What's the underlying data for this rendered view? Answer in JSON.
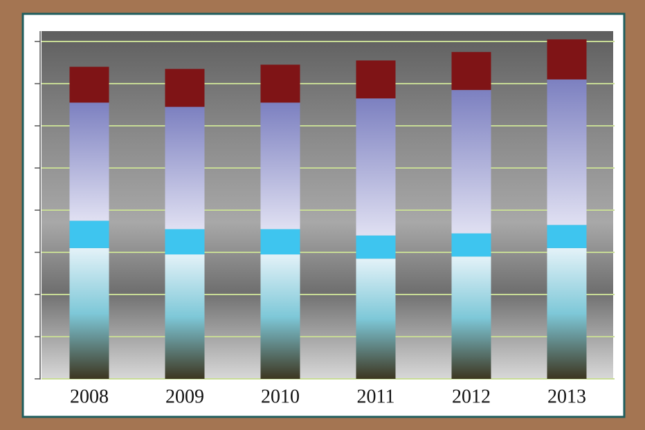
{
  "chart_data": {
    "type": "stacked-bar",
    "categories": [
      "2008",
      "2009",
      "2010",
      "2011",
      "2012",
      "2013"
    ],
    "series": [
      {
        "color": "#7ec8d8",
        "gradient": [
          "#e4f2f8",
          "#7ec8d8",
          "#3d3620"
        ],
        "values": [
          3.1,
          2.95,
          2.95,
          2.85,
          2.9,
          3.1
        ]
      },
      {
        "color": "#3ec5ef",
        "values": [
          0.65,
          0.6,
          0.6,
          0.55,
          0.55,
          0.55
        ]
      },
      {
        "color": "#7c80c0",
        "gradient": [
          "#7c80c0",
          "#e0e0f2"
        ],
        "values": [
          2.8,
          2.9,
          3.0,
          3.25,
          3.4,
          3.45
        ]
      },
      {
        "color": "#7f1416",
        "values": [
          0.85,
          0.9,
          0.9,
          0.9,
          0.9,
          0.95
        ]
      }
    ],
    "ylim": [
      0,
      8
    ],
    "yticks": [
      0,
      1,
      2,
      3,
      4,
      5,
      6,
      7,
      8
    ],
    "grid": true,
    "grid_color": "#c8dc96"
  }
}
